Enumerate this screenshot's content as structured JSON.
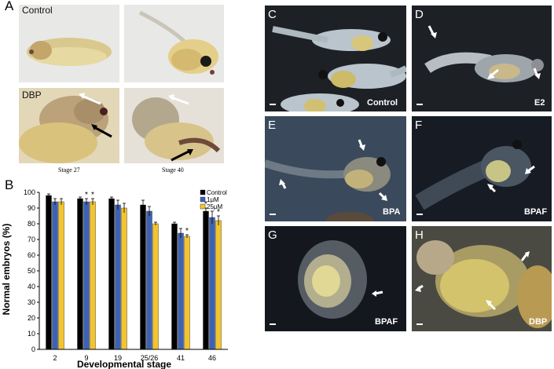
{
  "panel_letters": {
    "A": "A",
    "B": "B",
    "C": "C",
    "D": "D",
    "E": "E",
    "F": "F",
    "G": "G",
    "H": "H"
  },
  "panelA": {
    "control_label": "Control",
    "dbp_label": "DBP",
    "stage27": "Stage 27",
    "stage40": "Stage 40"
  },
  "photo_tags": {
    "C": "Control",
    "D": "E2",
    "E": "BPA",
    "F": "BPAF",
    "G": "BPAF",
    "H": "DBP"
  },
  "colors": {
    "control": "#000000",
    "1uM": "#3e62b3",
    "25uM": "#f3c42d"
  },
  "chart_data": {
    "type": "bar",
    "categories": [
      "2",
      "9",
      "19",
      "25/26",
      "41",
      "46"
    ],
    "series": [
      {
        "name": "Control",
        "values": [
          98,
          96,
          96,
          92,
          80,
          88
        ]
      },
      {
        "name": "1μM",
        "values": [
          94,
          94,
          92,
          88,
          74,
          84
        ]
      },
      {
        "name": "25μM",
        "values": [
          94,
          94,
          90,
          80,
          72,
          82
        ]
      }
    ],
    "errors": [
      [
        1,
        1,
        1,
        3,
        1,
        2
      ],
      [
        2,
        2,
        3,
        3,
        3,
        4
      ],
      [
        2,
        2,
        3,
        1,
        1,
        3
      ]
    ],
    "significance": [
      "",
      "",
      "",
      "",
      "*",
      "*",
      "",
      "",
      "",
      "",
      "",
      "",
      "",
      "",
      "*",
      "*",
      "",
      "*"
    ],
    "ylim": [
      0,
      100
    ],
    "yticks": [
      "0",
      "10",
      "20",
      "30",
      "40",
      "50",
      "60",
      "70",
      "80",
      "90",
      "100"
    ],
    "xlabel": "Developmental stage",
    "ylabel": "Normal embryos (%)",
    "legend": [
      "Control",
      "1μM",
      "25μM"
    ],
    "legend_position": "top-right"
  }
}
